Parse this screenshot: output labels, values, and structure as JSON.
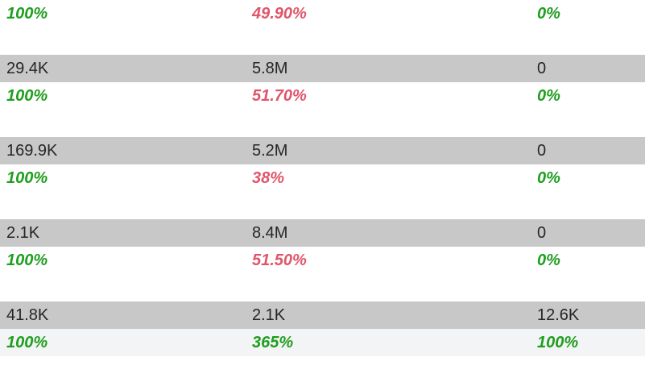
{
  "colors": {
    "positive": "#1f9e1f",
    "negative": "#e0566a",
    "band": "#c8c8c8"
  },
  "rows": [
    {
      "pct": [
        "100%",
        "49.90%",
        "0%"
      ]
    },
    {
      "values": [
        "29.4K",
        "5.8M",
        "0"
      ],
      "pct": [
        "100%",
        "51.70%",
        "0%"
      ]
    },
    {
      "values": [
        "169.9K",
        "5.2M",
        "0"
      ],
      "pct": [
        "100%",
        "38%",
        "0%"
      ]
    },
    {
      "values": [
        "2.1K",
        "8.4M",
        "0"
      ],
      "pct": [
        "100%",
        "51.50%",
        "0%"
      ]
    },
    {
      "values": [
        "41.8K",
        "2.1K",
        "12.6K"
      ],
      "pct": [
        "100%",
        "365%",
        "100%"
      ]
    }
  ]
}
